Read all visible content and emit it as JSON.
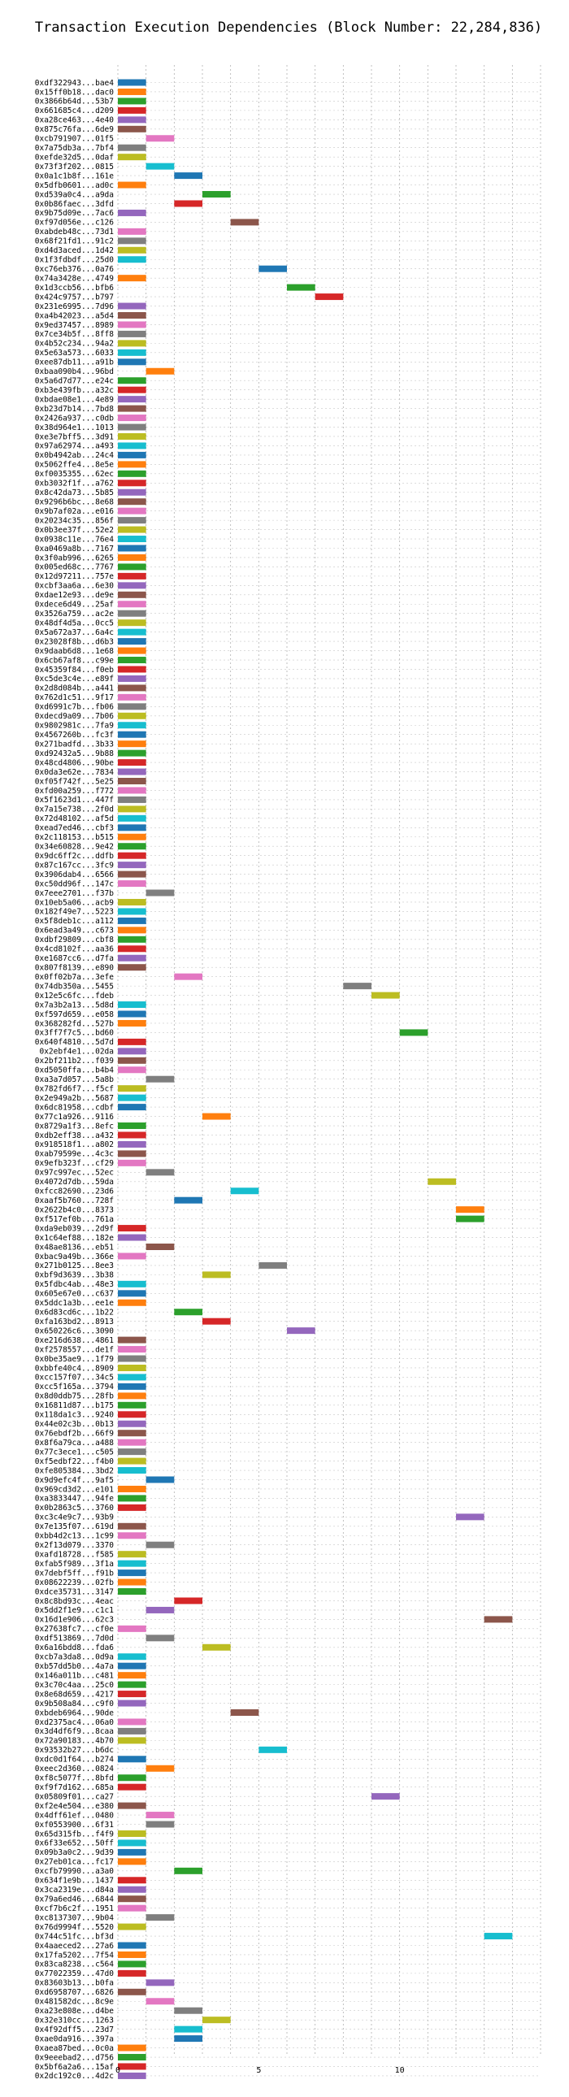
{
  "chart_data": {
    "type": "bar",
    "orientation": "horizontal",
    "title": "Transaction Execution Dependencies (Block Number: 22,284,836)",
    "xlabel": "",
    "ylabel": "",
    "xlim": [
      0,
      15
    ],
    "xticks": [
      0,
      5,
      10
    ],
    "grid": true,
    "palette": [
      "#1f77b4",
      "#ff7f0e",
      "#2ca02c",
      "#d62728",
      "#9467bd",
      "#8c564b",
      "#e377c2",
      "#7f7f7f",
      "#bcbd22",
      "#17becf"
    ],
    "rows": [
      {
        "label": "0xdf322943...bae4",
        "start": 0
      },
      {
        "label": "0x15ff0b18...dac0",
        "start": 0
      },
      {
        "label": "0x3866b64d...53b7",
        "start": 0
      },
      {
        "label": "0x661685c4...d209",
        "start": 0
      },
      {
        "label": "0xa28ce463...4e40",
        "start": 0
      },
      {
        "label": "0x875c76fa...6de9",
        "start": 0
      },
      {
        "label": "0xcb791907...01f5",
        "start": 1
      },
      {
        "label": "0x7a75db3a...7bf4",
        "start": 0
      },
      {
        "label": "0xefde32d5...0daf",
        "start": 0
      },
      {
        "label": "0x73f3f202...0815",
        "start": 1
      },
      {
        "label": "0x0a1c1b8f...161e",
        "start": 2
      },
      {
        "label": "0x5dfb0601...ad0c",
        "start": 0
      },
      {
        "label": "0xd539a0c4...a9da",
        "start": 3
      },
      {
        "label": "0x0b86faec...3dfd",
        "start": 2
      },
      {
        "label": "0x9b75d09e...7ac6",
        "start": 0
      },
      {
        "label": "0xf97d056e...c126",
        "start": 4
      },
      {
        "label": "0xabdeb48c...73d1",
        "start": 0
      },
      {
        "label": "0x68f21fd1...91c2",
        "start": 0
      },
      {
        "label": "0xd4d3aced...1d42",
        "start": 0
      },
      {
        "label": "0x1f3fdbdf...25d0",
        "start": 0
      },
      {
        "label": "0xc76eb376...0a76",
        "start": 5
      },
      {
        "label": "0x74a3428e...4749",
        "start": 0
      },
      {
        "label": "0x1d3ccb56...bfb6",
        "start": 6
      },
      {
        "label": "0x424c9757...b797",
        "start": 7
      },
      {
        "label": "0x231e6995...7d96",
        "start": 0
      },
      {
        "label": "0xa4b42023...a5d4",
        "start": 0
      },
      {
        "label": "0x9ed37457...8989",
        "start": 0
      },
      {
        "label": "0x7ce34b5f...8ff8",
        "start": 0
      },
      {
        "label": "0x4b52c234...94a2",
        "start": 0
      },
      {
        "label": "0x5e63a573...6033",
        "start": 0
      },
      {
        "label": "0xee87db11...a91b",
        "start": 0
      },
      {
        "label": "0xbaa090b4...96bd",
        "start": 1
      },
      {
        "label": "0x5a6d7d77...e24c",
        "start": 0
      },
      {
        "label": "0xb3e439fb...a32c",
        "start": 0
      },
      {
        "label": "0xbdae08e1...4e89",
        "start": 0
      },
      {
        "label": "0xb23d7b14...7bd8",
        "start": 0
      },
      {
        "label": "0x2426a937...c0db",
        "start": 0
      },
      {
        "label": "0x38d964e1...1013",
        "start": 0
      },
      {
        "label": "0xe3e7bff5...3d91",
        "start": 0
      },
      {
        "label": "0x97a62974...a493",
        "start": 0
      },
      {
        "label": "0x0b4942ab...24c4",
        "start": 0
      },
      {
        "label": "0x5062ffe4...8e5e",
        "start": 0
      },
      {
        "label": "0xf0035355...62ec",
        "start": 0
      },
      {
        "label": "0xb3032f1f...a762",
        "start": 0
      },
      {
        "label": "0x8c42da73...5b85",
        "start": 0
      },
      {
        "label": "0x9296b6bc...8e68",
        "start": 0
      },
      {
        "label": "0x9b7af02a...e016",
        "start": 0
      },
      {
        "label": "0x20234c35...856f",
        "start": 0
      },
      {
        "label": "0x0b3ee37f...52e2",
        "start": 0
      },
      {
        "label": "0x0938c11e...76e4",
        "start": 0
      },
      {
        "label": "0xa0469a8b...7167",
        "start": 0
      },
      {
        "label": "0x3f0ab996...6265",
        "start": 0
      },
      {
        "label": "0x005ed68c...7767",
        "start": 0
      },
      {
        "label": "0x12d97211...757e",
        "start": 0
      },
      {
        "label": "0xcbf3aa6a...6e30",
        "start": 0
      },
      {
        "label": "0xdae12e93...de9e",
        "start": 0
      },
      {
        "label": "0xdece6d49...25af",
        "start": 0
      },
      {
        "label": "0x3526a759...ac2e",
        "start": 0
      },
      {
        "label": "0x48df4d5a...0cc5",
        "start": 0
      },
      {
        "label": "0x5a672a37...6a4c",
        "start": 0
      },
      {
        "label": "0x23028f8b...d6b3",
        "start": 0
      },
      {
        "label": "0x9daab6d8...1e68",
        "start": 0
      },
      {
        "label": "0x6cb67af8...c99e",
        "start": 0
      },
      {
        "label": "0x45359f84...f0eb",
        "start": 0
      },
      {
        "label": "0xc5de3c4e...e89f",
        "start": 0
      },
      {
        "label": "0x2d8d084b...a441",
        "start": 0
      },
      {
        "label": "0x762d1c51...9f17",
        "start": 0
      },
      {
        "label": "0xd6991c7b...fb06",
        "start": 0
      },
      {
        "label": "0xdecd9a09...7b06",
        "start": 0
      },
      {
        "label": "0x9802981c...7fa9",
        "start": 0
      },
      {
        "label": "0x4567260b...fc3f",
        "start": 0
      },
      {
        "label": "0x271badfd...3b33",
        "start": 0
      },
      {
        "label": "0xd92432a5...9b88",
        "start": 0
      },
      {
        "label": "0x48cd4806...90be",
        "start": 0
      },
      {
        "label": "0x0da3e62e...7834",
        "start": 0
      },
      {
        "label": "0xf05f742f...5e25",
        "start": 0
      },
      {
        "label": "0xfd00a259...f772",
        "start": 0
      },
      {
        "label": "0x5f1623d1...447f",
        "start": 0
      },
      {
        "label": "0x7a15e738...2f0d",
        "start": 0
      },
      {
        "label": "0x72d48102...af5d",
        "start": 0
      },
      {
        "label": "0xead7ed46...cbf3",
        "start": 0
      },
      {
        "label": "0x2c118153...b515",
        "start": 0
      },
      {
        "label": "0x34e60828...9e42",
        "start": 0
      },
      {
        "label": "0x9dc6ff2c...ddfb",
        "start": 0
      },
      {
        "label": "0x87c167cc...3fc9",
        "start": 0
      },
      {
        "label": "0x3906dab4...6566",
        "start": 0
      },
      {
        "label": "0xc50dd96f...147c",
        "start": 0
      },
      {
        "label": "0x7eee2701...f37b",
        "start": 1
      },
      {
        "label": "0x10eb5a06...acb9",
        "start": 0
      },
      {
        "label": "0x182f49e7...5223",
        "start": 0
      },
      {
        "label": "0x5f8deb1c...a112",
        "start": 0
      },
      {
        "label": "0x6ead3a49...c673",
        "start": 0
      },
      {
        "label": "0xdbf29809...cbf8",
        "start": 0
      },
      {
        "label": "0x4cd8102f...aa36",
        "start": 0
      },
      {
        "label": "0xe1687cc6...d7fa",
        "start": 0
      },
      {
        "label": "0x807f8139...e890",
        "start": 0
      },
      {
        "label": "0x0ff02b7a...3efe",
        "start": 2
      },
      {
        "label": "0x74db350a...5455",
        "start": 8
      },
      {
        "label": "0x12e5c6fc...fdeb",
        "start": 9
      },
      {
        "label": "0x7a3b2a13...5d8d",
        "start": 0
      },
      {
        "label": "0xf597d659...e058",
        "start": 0
      },
      {
        "label": "0x368282fd...527b",
        "start": 0
      },
      {
        "label": "0x3ff7f7c5...bd60",
        "start": 10
      },
      {
        "label": "0x640f4810...5d7d",
        "start": 0
      },
      {
        "label": "0x2ebf4e1...02da",
        "start": 0
      },
      {
        "label": "0x2bf211b2...f039",
        "start": 0
      },
      {
        "label": "0xd5050ffa...b4b4",
        "start": 0
      },
      {
        "label": "0xa3a7d057...5a8b",
        "start": 1
      },
      {
        "label": "0x782fd6f7...f5cf",
        "start": 0
      },
      {
        "label": "0x2e949a2b...5687",
        "start": 0
      },
      {
        "label": "0x6dc81958...cdbf",
        "start": 0
      },
      {
        "label": "0x77c1a926...9116",
        "start": 3
      },
      {
        "label": "0x8729a1f3...8efc",
        "start": 0
      },
      {
        "label": "0xdb2eff38...a432",
        "start": 0
      },
      {
        "label": "0x918518f1...a802",
        "start": 0
      },
      {
        "label": "0xab79599e...4c3c",
        "start": 0
      },
      {
        "label": "0x9efb323f...cf29",
        "start": 0
      },
      {
        "label": "0x97c997ec...52ec",
        "start": 1
      },
      {
        "label": "0x4072d7db...59da",
        "start": 11
      },
      {
        "label": "0xfcc82690...23d6",
        "start": 4
      },
      {
        "label": "0xaaf5b760...728f",
        "start": 2
      },
      {
        "label": "0x2622b4c0...8373",
        "start": 12
      },
      {
        "label": "0xf517ef0b...761a",
        "start": 12
      },
      {
        "label": "0xda9eb039...2d9f",
        "start": 0
      },
      {
        "label": "0x1c64ef88...182e",
        "start": 0
      },
      {
        "label": "0x48ae8136...eb51",
        "start": 1
      },
      {
        "label": "0xbac9a49b...366e",
        "start": 0
      },
      {
        "label": "0x271b0125...8ee3",
        "start": 5
      },
      {
        "label": "0xbf9d3639...3b38",
        "start": 3
      },
      {
        "label": "0x5fdbc4ab...48e3",
        "start": 0
      },
      {
        "label": "0x605e67e0...c637",
        "start": 0
      },
      {
        "label": "0x5ddc1a3b...ee1e",
        "start": 0
      },
      {
        "label": "0x6d83cd6c...1b22",
        "start": 2
      },
      {
        "label": "0xfa163bd2...8913",
        "start": 3
      },
      {
        "label": "0x650226c6...3090",
        "start": 6
      },
      {
        "label": "0xe216d638...4861",
        "start": 0
      },
      {
        "label": "0xf2578557...de1f",
        "start": 0
      },
      {
        "label": "0x0be35ae9...1f79",
        "start": 0
      },
      {
        "label": "0xbbfe40c4...8909",
        "start": 0
      },
      {
        "label": "0xcc157f07...34c5",
        "start": 0
      },
      {
        "label": "0xcc5f165a...3794",
        "start": 0
      },
      {
        "label": "0x8d0ddb75...28fb",
        "start": 0
      },
      {
        "label": "0x16811d87...b175",
        "start": 0
      },
      {
        "label": "0x118da1c3...9240",
        "start": 0
      },
      {
        "label": "0x44e02c3b...0b13",
        "start": 0
      },
      {
        "label": "0x76ebdf2b...66f9",
        "start": 0
      },
      {
        "label": "0x8f6a79ca...a488",
        "start": 0
      },
      {
        "label": "0x77c3ece1...c505",
        "start": 0
      },
      {
        "label": "0xf5edbf22...f4b0",
        "start": 0
      },
      {
        "label": "0xfe805384...3bd2",
        "start": 0
      },
      {
        "label": "0x9d9efc4f...9af5",
        "start": 1
      },
      {
        "label": "0x969cd3d2...e101",
        "start": 0
      },
      {
        "label": "0xa3833447...94fe",
        "start": 0
      },
      {
        "label": "0x0b2863c5...3760",
        "start": 0
      },
      {
        "label": "0xc3c4e9c7...93b9",
        "start": 12
      },
      {
        "label": "0x7e135f07...619d",
        "start": 0
      },
      {
        "label": "0xbb4d2c13...1c99",
        "start": 0
      },
      {
        "label": "0x2f13d079...3370",
        "start": 1
      },
      {
        "label": "0xafd18728...f585",
        "start": 0
      },
      {
        "label": "0xfab5f989...3f1a",
        "start": 0
      },
      {
        "label": "0x7debf5ff...f91b",
        "start": 0
      },
      {
        "label": "0x08622239...02fb",
        "start": 0
      },
      {
        "label": "0xdce35731...3147",
        "start": 0
      },
      {
        "label": "0x8c8bd93c...4eac",
        "start": 2
      },
      {
        "label": "0x5dd2f1e9...c1c1",
        "start": 1
      },
      {
        "label": "0x16d1e906...62c3",
        "start": 13
      },
      {
        "label": "0x27638fc7...cf0e",
        "start": 0
      },
      {
        "label": "0xdf513869...7d0d",
        "start": 1
      },
      {
        "label": "0x6a16bdd8...fda6",
        "start": 3
      },
      {
        "label": "0xcb7a3da8...0d9a",
        "start": 0
      },
      {
        "label": "0xb57dd5b0...4a7a",
        "start": 0
      },
      {
        "label": "0x146a011b...c481",
        "start": 0
      },
      {
        "label": "0x3c70c4aa...25c0",
        "start": 0
      },
      {
        "label": "0x8e68d659...4217",
        "start": 0
      },
      {
        "label": "0x9b508a84...c9f0",
        "start": 0
      },
      {
        "label": "0xbdeb6964...90de",
        "start": 4
      },
      {
        "label": "0xd2375ac4...06a0",
        "start": 0
      },
      {
        "label": "0x3d4df6f9...8caa",
        "start": 0
      },
      {
        "label": "0x72a90183...4b70",
        "start": 0
      },
      {
        "label": "0x93532b27...b6dc",
        "start": 5
      },
      {
        "label": "0xdc0d1f64...b274",
        "start": 0
      },
      {
        "label": "0xeec2d360...0824",
        "start": 1
      },
      {
        "label": "0xf8c5077f...8bfd",
        "start": 0
      },
      {
        "label": "0xf9f7d162...685a",
        "start": 0
      },
      {
        "label": "0x05809f01...ca27",
        "start": 9
      },
      {
        "label": "0xf2e4e504...e380",
        "start": 0
      },
      {
        "label": "0x4dff61ef...0480",
        "start": 1
      },
      {
        "label": "0xf0553900...6f31",
        "start": 1
      },
      {
        "label": "0x65d315fb...f4f9",
        "start": 0
      },
      {
        "label": "0x6f33e652...50ff",
        "start": 0
      },
      {
        "label": "0x09b3a0c2...9d39",
        "start": 0
      },
      {
        "label": "0x27eb01ca...fc17",
        "start": 0
      },
      {
        "label": "0xcfb79990...a3a0",
        "start": 2
      },
      {
        "label": "0x634f1e9b...1437",
        "start": 0
      },
      {
        "label": "0x3ca2319e...d84a",
        "start": 0
      },
      {
        "label": "0x79a6ed46...6844",
        "start": 0
      },
      {
        "label": "0xcf7b6c2f...1951",
        "start": 0
      },
      {
        "label": "0xc8137307...9b04",
        "start": 1
      },
      {
        "label": "0x76d9994f...5520",
        "start": 0
      },
      {
        "label": "0x744c51fc...bf3d",
        "start": 13
      },
      {
        "label": "0x4aaeced2...27a6",
        "start": 0
      },
      {
        "label": "0x17fa5202...7f54",
        "start": 0
      },
      {
        "label": "0x83ca8238...c564",
        "start": 0
      },
      {
        "label": "0x77022359...47d0",
        "start": 0
      },
      {
        "label": "0x83603b13...b0fa",
        "start": 1
      },
      {
        "label": "0xd6958707...6826",
        "start": 0
      },
      {
        "label": "0x481582dc...8c9e",
        "start": 1
      },
      {
        "label": "0xa23e808e...d4be",
        "start": 2
      },
      {
        "label": "0x32e310cc...1263",
        "start": 3
      },
      {
        "label": "0x4f92dff5...23d7",
        "start": 2
      },
      {
        "label": "0xae0da916...397a",
        "start": 2
      },
      {
        "label": "0xaea87bed...0c0a",
        "start": 0
      },
      {
        "label": "0x9eeebad2...d756",
        "start": 0
      },
      {
        "label": "0x5bf6a2a6...15af",
        "start": 0
      },
      {
        "label": "0x2dc192c0...4d2c",
        "start": 0
      }
    ],
    "bar_length": 1
  }
}
